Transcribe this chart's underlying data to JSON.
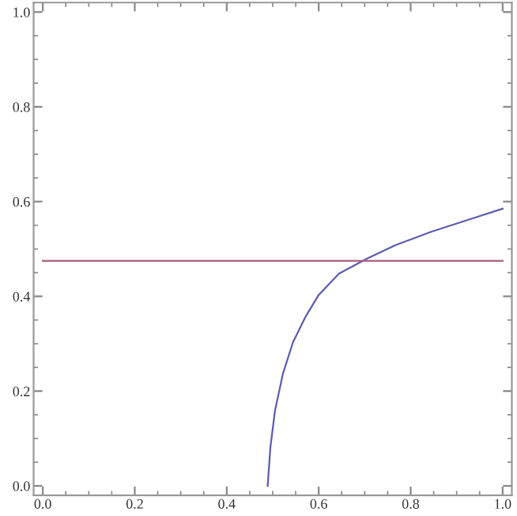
{
  "chart_data": {
    "type": "line",
    "xlim": [
      -0.02,
      1.02
    ],
    "ylim": [
      -0.02,
      1.02
    ],
    "xticks": [
      {
        "value": 0,
        "label": "0.0"
      },
      {
        "value": 0.05,
        "label": null
      },
      {
        "value": 0.1,
        "label": null
      },
      {
        "value": 0.15,
        "label": null
      },
      {
        "value": 0.2,
        "label": "0.2"
      },
      {
        "value": 0.25,
        "label": null
      },
      {
        "value": 0.3,
        "label": null
      },
      {
        "value": 0.35,
        "label": null
      },
      {
        "value": 0.4,
        "label": "0.4"
      },
      {
        "value": 0.45,
        "label": null
      },
      {
        "value": 0.5,
        "label": null
      },
      {
        "value": 0.55,
        "label": null
      },
      {
        "value": 0.6,
        "label": "0.6"
      },
      {
        "value": 0.65,
        "label": null
      },
      {
        "value": 0.7,
        "label": null
      },
      {
        "value": 0.75,
        "label": null
      },
      {
        "value": 0.8,
        "label": "0.8"
      },
      {
        "value": 0.85,
        "label": null
      },
      {
        "value": 0.9,
        "label": null
      },
      {
        "value": 0.95,
        "label": null
      },
      {
        "value": 1,
        "label": "1.0"
      }
    ],
    "yticks": [
      {
        "value": 0,
        "label": "0.0"
      },
      {
        "value": 0.05,
        "label": null
      },
      {
        "value": 0.1,
        "label": null
      },
      {
        "value": 0.15,
        "label": null
      },
      {
        "value": 0.2,
        "label": "0.2"
      },
      {
        "value": 0.25,
        "label": null
      },
      {
        "value": 0.3,
        "label": null
      },
      {
        "value": 0.35,
        "label": null
      },
      {
        "value": 0.4,
        "label": "0.4"
      },
      {
        "value": 0.45,
        "label": null
      },
      {
        "value": 0.5,
        "label": null
      },
      {
        "value": 0.55,
        "label": null
      },
      {
        "value": 0.6,
        "label": "0.6"
      },
      {
        "value": 0.65,
        "label": null
      },
      {
        "value": 0.7,
        "label": null
      },
      {
        "value": 0.75,
        "label": null
      },
      {
        "value": 0.8,
        "label": "0.8"
      },
      {
        "value": 0.85,
        "label": null
      },
      {
        "value": 0.9,
        "label": null
      },
      {
        "value": 0.95,
        "label": null
      },
      {
        "value": 1,
        "label": "1.0"
      }
    ],
    "grid": false,
    "legend": false,
    "marker": "none",
    "line_style": "solid",
    "series": [
      {
        "color": "#5c5cae",
        "x": [
          0.489,
          0.495,
          0.505,
          0.522,
          0.544,
          0.572,
          0.6,
          0.644,
          0.706,
          0.767,
          0.844,
          0.933,
          1.0
        ],
        "values": [
          0,
          0.082,
          0.159,
          0.236,
          0.303,
          0.358,
          0.403,
          0.448,
          0.48,
          0.508,
          0.536,
          0.564,
          0.585
        ]
      },
      {
        "color": "#a85a7c",
        "x": [
          0,
          1
        ],
        "values": [
          0.475,
          0.475
        ]
      }
    ]
  }
}
